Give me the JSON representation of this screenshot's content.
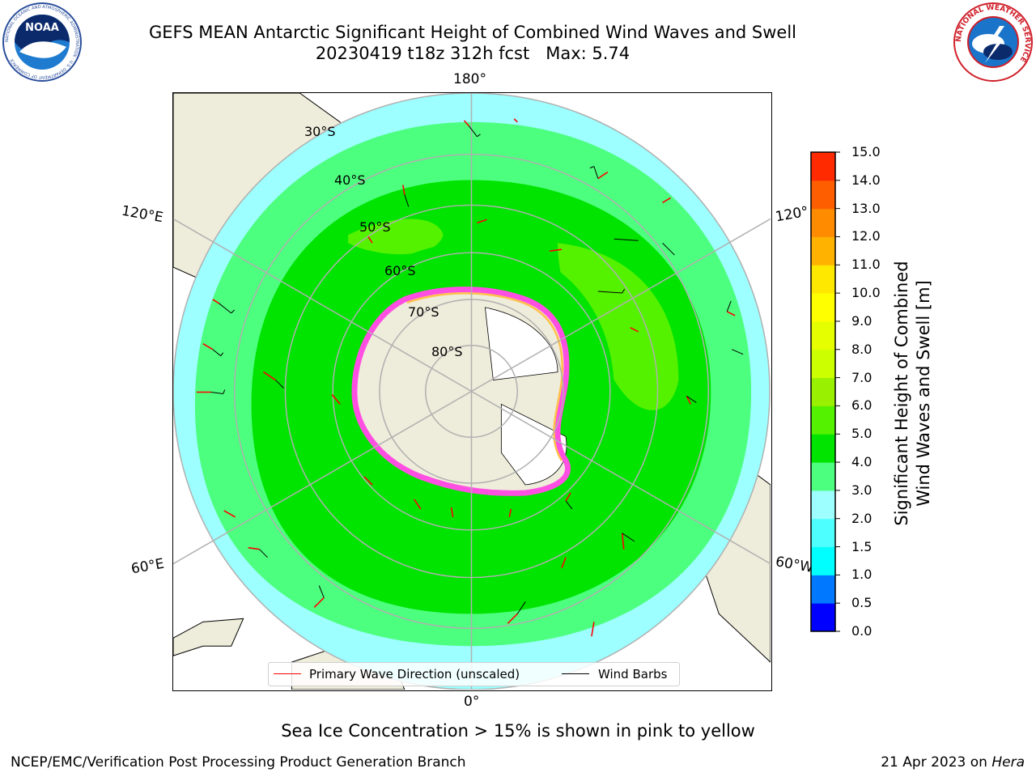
{
  "header": {
    "title_line1": "GEFS MEAN Antarctic Significant Height of Combined Wind Waves and Swell",
    "title_line2": "20230419 t18z 312h fcst   Max: 5.74"
  },
  "logos": {
    "noaa": {
      "text": "NOAA",
      "ring_text": "NATIONAL OCEANIC AND ATMOSPHERIC ADMINISTRATION · U.S. DEPARTMENT OF COMMERCE"
    },
    "nws": {
      "ring_text": "NATIONAL WEATHER SERVICE"
    }
  },
  "map": {
    "projection": "south-polar-stereographic",
    "lon_labels": {
      "top": "180°",
      "upper_left": "120°E",
      "upper_right": "120°",
      "lower_left": "60°E",
      "lower_right": "60°W",
      "bottom": "0°"
    },
    "lat_labels": [
      "30°S",
      "40°S",
      "50°S",
      "60°S",
      "70°S",
      "80°S"
    ],
    "colors": {
      "land": "#eeecda",
      "ice_shelf": "#ffffff",
      "sea_ice": [
        "#ff4fe2",
        "#ff99ff",
        "#ffc04a",
        "#fff27a"
      ]
    }
  },
  "colorbar": {
    "title_line1": "Significant Height of Combined",
    "title_line2": "Wind Waves and Swell [m]",
    "ticks": [
      "15.0",
      "14.0",
      "13.0",
      "12.0",
      "11.0",
      "10.0",
      "9.0",
      "8.0",
      "7.0",
      "6.0",
      "5.0",
      "4.0",
      "3.0",
      "2.0",
      "1.5",
      "1.0",
      "0.5",
      "0.0"
    ],
    "colors_bottom_to_top": [
      "#0000ff",
      "#0078ff",
      "#00ffff",
      "#4dffff",
      "#9dffff",
      "#4cff7e",
      "#00e400",
      "#55f200",
      "#99f000",
      "#ccff00",
      "#e6ff00",
      "#ffff00",
      "#ffe800",
      "#ffb300",
      "#ff8c00",
      "#ff5e00",
      "#ff2a00",
      "#ff0000"
    ]
  },
  "legend": {
    "primary_wave_label": "Primary Wave Direction (unscaled)",
    "wind_barbs_label": "Wind Barbs",
    "primary_wave_color": "#ff0000",
    "wind_barbs_color": "#000000"
  },
  "caption": "Sea Ice Concentration > 15% is shown in pink to yellow",
  "footer": {
    "left": "NCEP/EMC/Verification Post Processing Product Generation Branch",
    "right_date": "21 Apr 2023 on ",
    "right_host": "Hera"
  }
}
